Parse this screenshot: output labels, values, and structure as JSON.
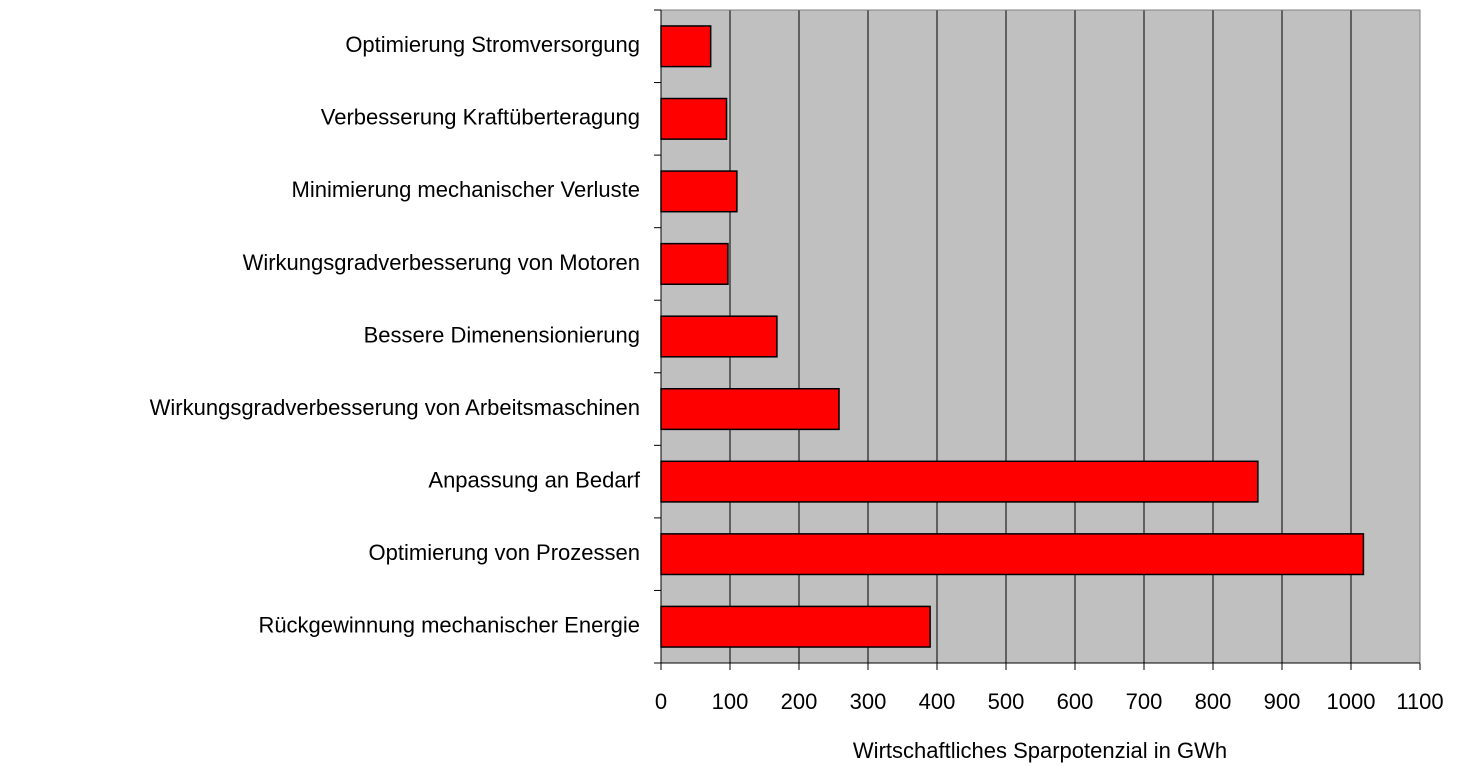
{
  "chart_data": {
    "type": "bar",
    "orientation": "horizontal",
    "x_label": "Wirtschaftliches Sparpotenzial in GWh",
    "categories": [
      "Optimierung Stromversorgung",
      "Verbesserung Kraftüberteragung",
      "Minimierung mechanischer Verluste",
      "Wirkungsgradverbesserung von Motoren",
      "Bessere Dimenensionierung",
      "Wirkungsgradverbesserung von Arbeitsmaschinen",
      "Anpassung an Bedarf",
      "Optimierung von Prozessen",
      "Rückgewinnung mechanischer Energie"
    ],
    "values": [
      72,
      95,
      110,
      97,
      168,
      258,
      865,
      1018,
      390
    ],
    "color": "#ff0000",
    "xlim": [
      0,
      1100
    ],
    "xticks": [
      0,
      100,
      200,
      300,
      400,
      500,
      600,
      700,
      800,
      900,
      1000,
      1100
    ],
    "grid": true
  }
}
